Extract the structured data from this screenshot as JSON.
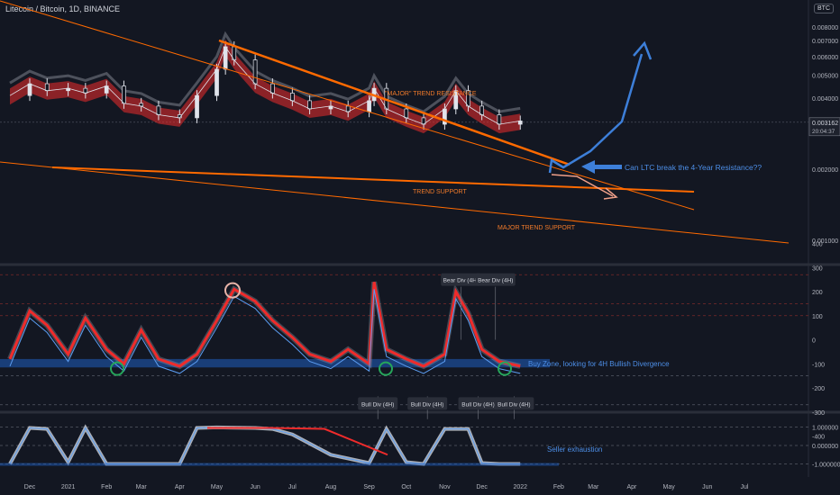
{
  "header": {
    "symbol_title": "Litecoin / Bitcoin, 1D, BINANCE",
    "currency_badge": "BTC"
  },
  "colors": {
    "background": "#131722",
    "trendline_orange": "#ff6a00",
    "projection_blue": "#3d7fd9",
    "bull_green": "#26a69a",
    "bear_red": "#ef2b2b",
    "label_bg": "#2a2e39"
  },
  "chart_data": [
    {
      "type": "line",
      "panel": "price",
      "title": "Litecoin / Bitcoin, 1D, BINANCE",
      "scale": "log",
      "ylim": [
        0.0008,
        0.0095
      ],
      "price_ticks": [
        "0.008000",
        "0.007000",
        "0.006000",
        "0.005000",
        "0.004000",
        "0.003000",
        "0.002000",
        "0.001000"
      ],
      "price_tick_values": [
        0.008,
        0.007,
        0.006,
        0.005,
        0.004,
        0.003,
        0.002,
        0.001
      ],
      "last_price": "0.003162",
      "countdown": "20:04:37",
      "x_ticks": [
        "Dec",
        "2021",
        "Feb",
        "Mar",
        "Apr",
        "May",
        "Jun",
        "Jul",
        "Aug",
        "Sep",
        "Oct",
        "Nov",
        "Dec",
        "2022",
        "Feb",
        "Mar",
        "Apr",
        "May",
        "Jun",
        "Jul"
      ],
      "series": [
        {
          "x": [
            "2020-11-15",
            "2020-12-01",
            "2020-12-15",
            "2021-01-01",
            "2021-01-15",
            "2021-02-01",
            "2021-02-15",
            "2021-03-01",
            "2021-03-15",
            "2021-04-01",
            "2021-04-15",
            "2021-05-01",
            "2021-05-08",
            "2021-05-15",
            "2021-06-01",
            "2021-06-15",
            "2021-07-01",
            "2021-07-15",
            "2021-08-01",
            "2021-08-15",
            "2021-09-01",
            "2021-09-05",
            "2021-09-15",
            "2021-10-01",
            "2021-10-15",
            "2021-11-01",
            "2021-11-10",
            "2021-11-20",
            "2021-12-01",
            "2021-12-15",
            "2022-01-01"
          ],
          "values": [
            0.0041,
            0.0046,
            0.0043,
            0.0044,
            0.0042,
            0.0045,
            0.0038,
            0.0037,
            0.0034,
            0.0033,
            0.0041,
            0.0053,
            0.0066,
            0.0058,
            0.0046,
            0.0042,
            0.0039,
            0.0036,
            0.0037,
            0.0035,
            0.0039,
            0.0044,
            0.0036,
            0.0033,
            0.0031,
            0.0036,
            0.0043,
            0.0037,
            0.0034,
            0.0031,
            0.0032
          ]
        }
      ],
      "annotations": [
        {
          "text": "\"MAJOR\" TREND RESISTANCE",
          "color": "orange"
        },
        {
          "text": "TREND SUPPORT",
          "color": "orange"
        },
        {
          "text": "MAJOR TREND SUPPORT",
          "color": "orange"
        },
        {
          "text": "Can LTC break the 4-Year Resistance??",
          "color": "blue"
        }
      ]
    },
    {
      "type": "line",
      "panel": "oscillator",
      "ylim": [
        -420,
        420
      ],
      "y_ticks": [
        "400",
        "300",
        "200",
        "100",
        "0",
        "-100",
        "-200",
        "-300",
        "-400"
      ],
      "y_tick_values": [
        400,
        300,
        200,
        100,
        0,
        -100,
        -200,
        -300,
        -400
      ],
      "x": [
        "2020-11-15",
        "2020-12-01",
        "2020-12-15",
        "2021-01-01",
        "2021-01-15",
        "2021-02-01",
        "2021-02-15",
        "2021-03-01",
        "2021-03-15",
        "2021-04-01",
        "2021-04-15",
        "2021-05-01",
        "2021-05-15",
        "2021-06-01",
        "2021-06-15",
        "2021-07-01",
        "2021-07-15",
        "2021-08-01",
        "2021-08-15",
        "2021-09-01",
        "2021-09-05",
        "2021-09-15",
        "2021-10-01",
        "2021-10-15",
        "2021-11-01",
        "2021-11-10",
        "2021-11-20",
        "2021-12-01",
        "2021-12-15",
        "2022-01-01"
      ],
      "values": [
        -80,
        120,
        60,
        -60,
        90,
        -40,
        -100,
        40,
        -80,
        -110,
        -60,
        80,
        210,
        160,
        80,
        10,
        -60,
        -90,
        -40,
        -100,
        240,
        -40,
        -80,
        -110,
        -60,
        200,
        110,
        -40,
        -90,
        -110
      ],
      "labels": [
        {
          "text": "Bear Div (4H)",
          "date": "2021-11-14",
          "value": 250
        },
        {
          "text": "Bear Div (4H)",
          "date": "2021-12-12",
          "value": 250
        },
        {
          "text": "Bull Div (4H)",
          "date": "2021-09-08",
          "value": -265
        },
        {
          "text": "Bull Div (4H)",
          "date": "2021-10-18",
          "value": -265
        },
        {
          "text": "Bull Div (4H)",
          "date": "2021-11-28",
          "value": -265
        },
        {
          "text": "Bull Div (4H)",
          "date": "2021-12-27",
          "value": -265
        }
      ],
      "annotation": "Buy Zone, looking for 4H Bullish Divergence"
    },
    {
      "type": "line",
      "panel": "stochastic",
      "ylim": [
        -1.2,
        1.2
      ],
      "y_ticks": [
        "1.000000",
        "0.000000",
        "-1.000000"
      ],
      "y_tick_values": [
        1,
        0,
        -1
      ],
      "x": [
        "2020-11-15",
        "2020-12-01",
        "2020-12-15",
        "2021-01-01",
        "2021-01-15",
        "2021-02-01",
        "2021-02-15",
        "2021-03-01",
        "2021-04-01",
        "2021-04-15",
        "2021-05-01",
        "2021-06-01",
        "2021-06-15",
        "2021-07-01",
        "2021-08-01",
        "2021-09-01",
        "2021-09-15",
        "2021-10-01",
        "2021-10-15",
        "2021-11-01",
        "2021-11-20",
        "2021-12-01",
        "2021-12-15",
        "2022-01-01"
      ],
      "values": [
        -1,
        0.95,
        0.9,
        -0.9,
        0.95,
        -1,
        -1,
        -1,
        -1,
        0.95,
        0.98,
        0.95,
        0.9,
        0.6,
        -0.5,
        -0.95,
        0.9,
        -0.9,
        -1,
        0.9,
        0.9,
        -0.95,
        -1,
        -1
      ],
      "annotation": "Seller exhaustion"
    }
  ]
}
